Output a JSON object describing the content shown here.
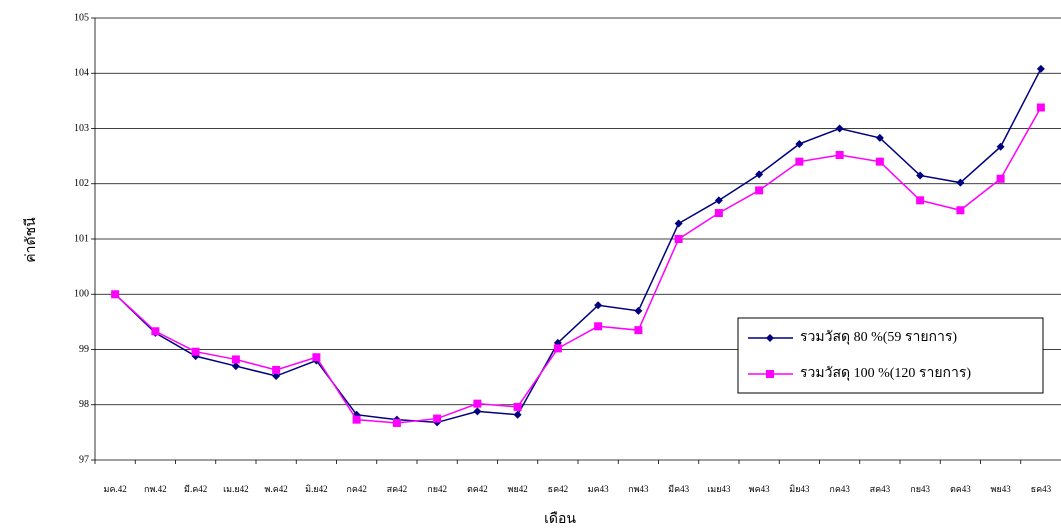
{
  "chart_data": {
    "type": "line",
    "x_label": "เดือน",
    "y_label": "ค่าดัชนี",
    "categories": [
      "มค.42",
      "กพ.42",
      "มี.ค42",
      "เม.ย42",
      "พ.ค42",
      "มิ.ย42",
      "กค42",
      "สค42",
      "กย42",
      "ตค42",
      "พย42",
      "ธค42",
      "มค43",
      "กพ43",
      "มีค43",
      "เมย43",
      "พค43",
      "มิย43",
      "กค43",
      "สค43",
      "กย43",
      "ตค43",
      "พย43",
      "ธค43"
    ],
    "series": [
      {
        "name": "รวมวัสดุ 80 %(59 รายการ)",
        "color": "#000080",
        "marker": "diamond",
        "values": [
          100,
          99.3,
          98.88,
          98.7,
          98.52,
          98.8,
          97.82,
          97.73,
          97.68,
          97.88,
          97.82,
          99.12,
          99.8,
          99.7,
          101.28,
          101.7,
          102.17,
          102.72,
          103.0,
          102.83,
          102.15,
          102.02,
          102.67,
          104.08
        ]
      },
      {
        "name": "รวมวัสดุ 100 %(120 รายการ)",
        "color": "#ff00ff",
        "marker": "square",
        "values": [
          100,
          99.33,
          98.96,
          98.82,
          98.63,
          98.86,
          97.73,
          97.67,
          97.75,
          98.02,
          97.96,
          99.02,
          99.42,
          99.35,
          101.0,
          101.47,
          101.88,
          102.4,
          102.52,
          102.4,
          101.7,
          101.52,
          102.09,
          103.38
        ]
      }
    ],
    "ylim": [
      97,
      105
    ],
    "yticks": [
      97,
      98,
      99,
      100,
      101,
      102,
      103,
      104,
      105
    ],
    "grid": true
  }
}
